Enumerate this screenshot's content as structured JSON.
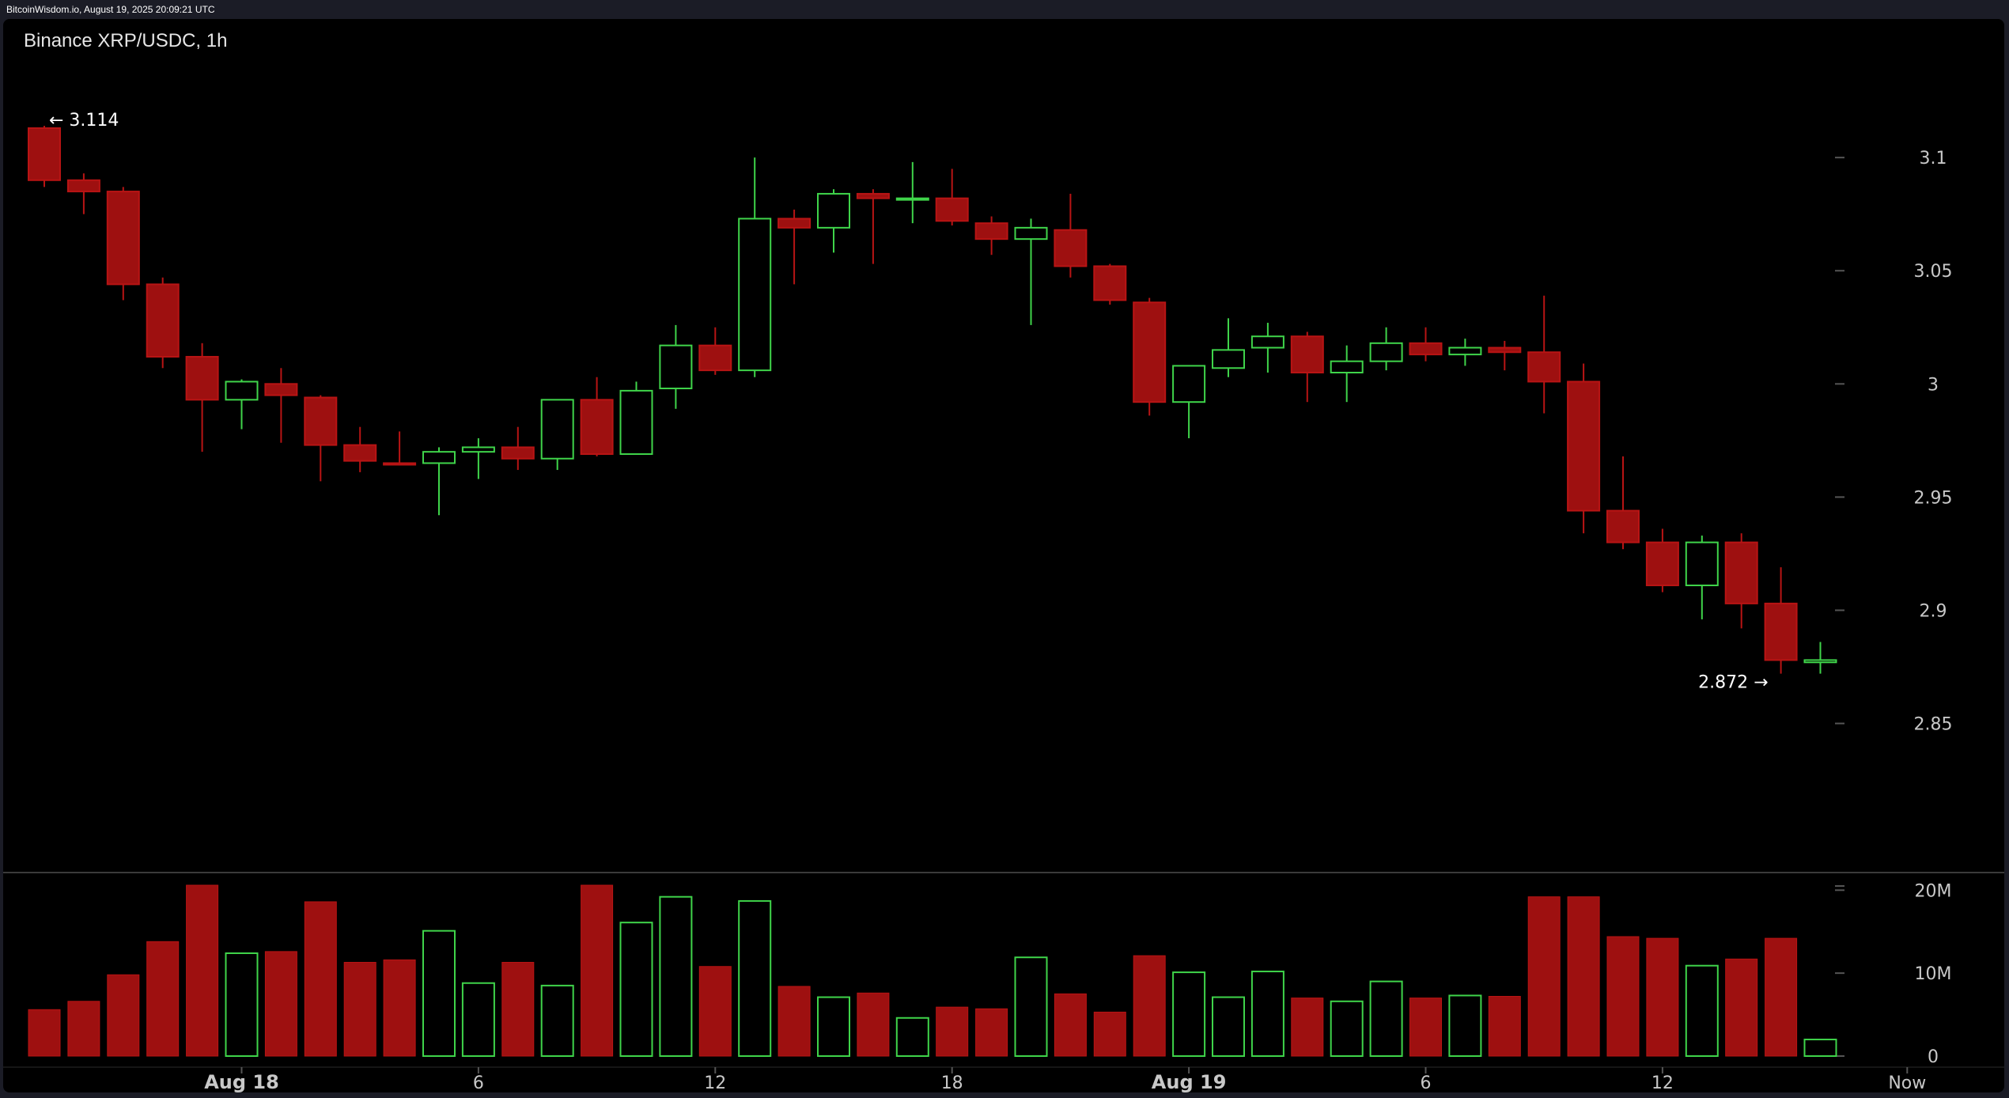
{
  "header": {
    "source_line": "BitcoinWisdom.io, August 19, 2025 20:09:21 UTC"
  },
  "chart_data": {
    "type": "candlestick",
    "title": "Binance XRP/USDC, 1h",
    "colors": {
      "up": "#3fd44a",
      "down": "#b81414",
      "down_fill": "#9e1010",
      "grid_tick": "#555555",
      "separator": "#3a3a3a"
    },
    "y_axis": {
      "ticks": [
        2.85,
        2.9,
        2.95,
        3,
        3.05,
        3.1
      ],
      "tick_labels": [
        "2.85",
        "2.9",
        "2.95",
        "3",
        "3.05",
        "3.1"
      ],
      "range": [
        2.81,
        3.135
      ]
    },
    "volume_axis": {
      "ticks": [
        0,
        10,
        20
      ],
      "tick_labels": [
        "0",
        "10M",
        "20M"
      ],
      "range": [
        0,
        20.6
      ],
      "unit": "M"
    },
    "x_axis": {
      "labels": [
        {
          "index": 5,
          "text": "Aug 18",
          "bold": true
        },
        {
          "index": 11,
          "text": "6",
          "bold": false
        },
        {
          "index": 17,
          "text": "12",
          "bold": false
        },
        {
          "index": 23,
          "text": "18",
          "bold": false
        },
        {
          "index": 29,
          "text": "Aug 19",
          "bold": true
        },
        {
          "index": 35,
          "text": "6",
          "bold": false
        },
        {
          "index": 41,
          "text": "12",
          "bold": false
        },
        {
          "index": 47,
          "text": "Now",
          "bold": false
        }
      ]
    },
    "annotations": {
      "high": {
        "value": 3.114,
        "label": "← 3.114",
        "index": 0
      },
      "low": {
        "value": 2.872,
        "label": "2.872 →",
        "index": 44
      }
    },
    "candles": [
      {
        "o": 3.09,
        "h": 3.114,
        "l": 3.087,
        "c": 3.113,
        "v": 5.6,
        "d": "down"
      },
      {
        "o": 3.09,
        "h": 3.093,
        "l": 3.075,
        "c": 3.085,
        "v": 6.6,
        "d": "down"
      },
      {
        "o": 3.085,
        "h": 3.087,
        "l": 3.037,
        "c": 3.044,
        "v": 9.8,
        "d": "down"
      },
      {
        "o": 3.044,
        "h": 3.047,
        "l": 3.007,
        "c": 3.012,
        "v": 13.8,
        "d": "down"
      },
      {
        "o": 3.012,
        "h": 3.018,
        "l": 2.97,
        "c": 2.993,
        "v": 20.6,
        "d": "down"
      },
      {
        "o": 2.993,
        "h": 3.002,
        "l": 2.98,
        "c": 3.001,
        "v": 12.4,
        "d": "up"
      },
      {
        "o": 3.0,
        "h": 3.007,
        "l": 2.974,
        "c": 2.995,
        "v": 12.6,
        "d": "down"
      },
      {
        "o": 2.994,
        "h": 2.995,
        "l": 2.957,
        "c": 2.973,
        "v": 18.6,
        "d": "down"
      },
      {
        "o": 2.973,
        "h": 2.981,
        "l": 2.961,
        "c": 2.966,
        "v": 11.3,
        "d": "down"
      },
      {
        "o": 2.965,
        "h": 2.979,
        "l": 2.964,
        "c": 2.965,
        "v": 11.6,
        "d": "down"
      },
      {
        "o": 2.965,
        "h": 2.972,
        "l": 2.942,
        "c": 2.97,
        "v": 15.1,
        "d": "up"
      },
      {
        "o": 2.97,
        "h": 2.976,
        "l": 2.958,
        "c": 2.972,
        "v": 8.8,
        "d": "up"
      },
      {
        "o": 2.972,
        "h": 2.981,
        "l": 2.962,
        "c": 2.967,
        "v": 11.3,
        "d": "down"
      },
      {
        "o": 2.967,
        "h": 2.993,
        "l": 2.962,
        "c": 2.993,
        "v": 8.5,
        "d": "up"
      },
      {
        "o": 2.993,
        "h": 3.003,
        "l": 2.968,
        "c": 2.969,
        "v": 20.6,
        "d": "down"
      },
      {
        "o": 2.969,
        "h": 3.001,
        "l": 2.969,
        "c": 2.997,
        "v": 16.1,
        "d": "up"
      },
      {
        "o": 2.998,
        "h": 3.026,
        "l": 2.989,
        "c": 3.017,
        "v": 19.2,
        "d": "up"
      },
      {
        "o": 3.017,
        "h": 3.025,
        "l": 3.004,
        "c": 3.006,
        "v": 10.8,
        "d": "down"
      },
      {
        "o": 3.006,
        "h": 3.1,
        "l": 3.003,
        "c": 3.073,
        "v": 18.7,
        "d": "up"
      },
      {
        "o": 3.073,
        "h": 3.077,
        "l": 3.044,
        "c": 3.069,
        "v": 8.4,
        "d": "down"
      },
      {
        "o": 3.069,
        "h": 3.086,
        "l": 3.058,
        "c": 3.084,
        "v": 7.1,
        "d": "up"
      },
      {
        "o": 3.084,
        "h": 3.086,
        "l": 3.053,
        "c": 3.082,
        "v": 7.6,
        "d": "down"
      },
      {
        "o": 3.082,
        "h": 3.098,
        "l": 3.071,
        "c": 3.082,
        "v": 4.6,
        "d": "up"
      },
      {
        "o": 3.082,
        "h": 3.095,
        "l": 3.07,
        "c": 3.072,
        "v": 5.9,
        "d": "down"
      },
      {
        "o": 3.071,
        "h": 3.074,
        "l": 3.057,
        "c": 3.064,
        "v": 5.7,
        "d": "down"
      },
      {
        "o": 3.064,
        "h": 3.073,
        "l": 3.026,
        "c": 3.069,
        "v": 11.9,
        "d": "up"
      },
      {
        "o": 3.068,
        "h": 3.084,
        "l": 3.047,
        "c": 3.052,
        "v": 7.5,
        "d": "down"
      },
      {
        "o": 3.052,
        "h": 3.053,
        "l": 3.035,
        "c": 3.037,
        "v": 5.3,
        "d": "down"
      },
      {
        "o": 3.036,
        "h": 3.038,
        "l": 2.986,
        "c": 2.992,
        "v": 12.1,
        "d": "down"
      },
      {
        "o": 2.992,
        "h": 3.008,
        "l": 2.976,
        "c": 3.008,
        "v": 10.1,
        "d": "up"
      },
      {
        "o": 3.007,
        "h": 3.029,
        "l": 3.003,
        "c": 3.015,
        "v": 7.1,
        "d": "up"
      },
      {
        "o": 3.016,
        "h": 3.027,
        "l": 3.005,
        "c": 3.021,
        "v": 10.2,
        "d": "up"
      },
      {
        "o": 3.021,
        "h": 3.023,
        "l": 2.992,
        "c": 3.005,
        "v": 7.0,
        "d": "down"
      },
      {
        "o": 3.005,
        "h": 3.017,
        "l": 2.992,
        "c": 3.01,
        "v": 6.6,
        "d": "up"
      },
      {
        "o": 3.01,
        "h": 3.025,
        "l": 3.006,
        "c": 3.018,
        "v": 9.0,
        "d": "up"
      },
      {
        "o": 3.018,
        "h": 3.025,
        "l": 3.01,
        "c": 3.013,
        "v": 7.0,
        "d": "down"
      },
      {
        "o": 3.013,
        "h": 3.02,
        "l": 3.008,
        "c": 3.016,
        "v": 7.3,
        "d": "up"
      },
      {
        "o": 3.016,
        "h": 3.019,
        "l": 3.006,
        "c": 3.014,
        "v": 7.2,
        "d": "down"
      },
      {
        "o": 3.014,
        "h": 3.039,
        "l": 2.987,
        "c": 3.001,
        "v": 19.2,
        "d": "down"
      },
      {
        "o": 3.001,
        "h": 3.009,
        "l": 2.934,
        "c": 2.944,
        "v": 19.2,
        "d": "down"
      },
      {
        "o": 2.944,
        "h": 2.968,
        "l": 2.927,
        "c": 2.93,
        "v": 14.4,
        "d": "down"
      },
      {
        "o": 2.93,
        "h": 2.936,
        "l": 2.908,
        "c": 2.911,
        "v": 14.2,
        "d": "down"
      },
      {
        "o": 2.911,
        "h": 2.933,
        "l": 2.896,
        "c": 2.93,
        "v": 10.9,
        "d": "up"
      },
      {
        "o": 2.93,
        "h": 2.934,
        "l": 2.892,
        "c": 2.903,
        "v": 11.7,
        "d": "down"
      },
      {
        "o": 2.903,
        "h": 2.919,
        "l": 2.872,
        "c": 2.878,
        "v": 14.2,
        "d": "down"
      },
      {
        "o": 2.877,
        "h": 2.886,
        "l": 2.872,
        "c": 2.878,
        "v": 2.0,
        "d": "up"
      }
    ]
  }
}
